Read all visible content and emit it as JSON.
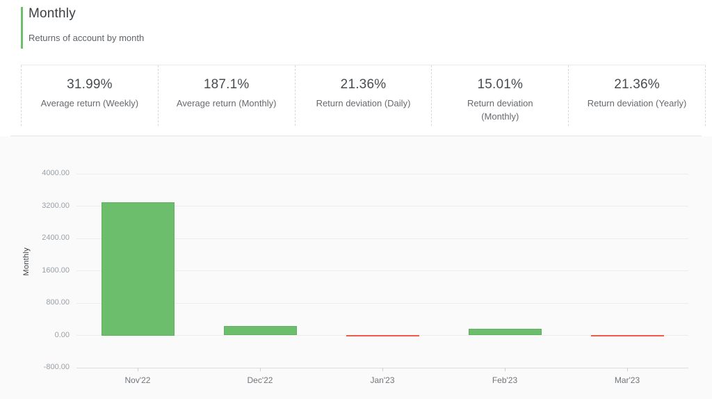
{
  "header": {
    "title": "Monthly",
    "subtitle": "Returns of account by month",
    "accent_color": "#6cbe6d"
  },
  "stats": [
    {
      "value": "31.99%",
      "label": "Average return (Weekly)"
    },
    {
      "value": "187.1%",
      "label": "Average return (Monthly)"
    },
    {
      "value": "21.36%",
      "label": "Return deviation (Daily)"
    },
    {
      "value": "15.01%",
      "label": "Return deviation (Monthly)"
    },
    {
      "value": "21.36%",
      "label": "Return deviation (Yearly)"
    }
  ],
  "chart_data": {
    "type": "bar",
    "categories": [
      "Nov'22",
      "Dec'22",
      "Jan'23",
      "Feb'23",
      "Mar'23"
    ],
    "values": [
      3300,
      235,
      -25,
      170,
      -25
    ],
    "title": "",
    "xlabel": "",
    "ylabel": "Monthly",
    "ylim": [
      -800,
      4000
    ],
    "yticks": [
      4000,
      3200,
      2400,
      1600,
      800,
      0,
      -800
    ],
    "ytick_labels": [
      "4000.00",
      "3200.00",
      "2400.00",
      "1600.00",
      "800.00",
      "0.00",
      "-800.00"
    ],
    "grid": true,
    "legend_position": "none",
    "colors": {
      "positive_fill": "#6cbe6d",
      "positive_border": "#5fb260",
      "negative_fill": "#f4695c",
      "negative_border": "#ef5a4c",
      "gridline": "#ededed",
      "axisline": "#dcdcdc"
    }
  }
}
